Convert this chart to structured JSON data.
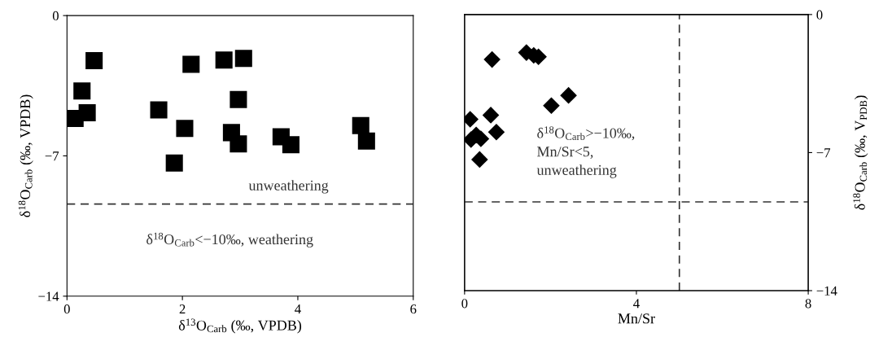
{
  "chart_data": [
    {
      "type": "scatter",
      "xlabel": "δ$^{13}$O$_{Carb}$ (‰, VPDB)",
      "ylabel": "δ$^{18}$O$_{Carb}$ (‰, VPDB)",
      "marker": "square",
      "xlim": [
        0,
        6
      ],
      "xticks": [
        0,
        2,
        4,
        6
      ],
      "ylim": [
        -14,
        0
      ],
      "yticks": [
        0,
        {
          "value": -7,
          "label": "−7"
        },
        {
          "value": -14,
          "label": "−14"
        }
      ],
      "x": [
        0.47,
        0.26,
        0.35,
        0.14,
        1.59,
        2.15,
        2.04,
        1.86,
        2.72,
        3.06,
        2.97,
        2.85,
        2.97,
        3.71,
        3.88,
        5.09,
        5.19
      ],
      "series": [
        {
          "color": "#000000",
          "values": [
            -2.25,
            -3.76,
            -4.85,
            -5.13,
            -4.71,
            -2.43,
            -5.63,
            -7.36,
            -2.22,
            -2.14,
            -4.19,
            -5.84,
            -6.4,
            -6.05,
            -6.44,
            -5.49,
            -6.26
          ]
        }
      ],
      "ref_lines": [
        {
          "axis": "y",
          "value": -9.4,
          "line_style": "dashed",
          "color": "#333333"
        }
      ],
      "annotations": [
        "unweathering",
        "δ$^{18}$O$_{Carb}$<−10‰, weathering"
      ],
      "grid": false
    },
    {
      "type": "scatter",
      "xlabel": "Mn/Sr",
      "y2label": "δ$^{18}$O$_{Carb}$ (‰, V$_{PDB}$)",
      "marker": "diamond",
      "xlim": [
        0,
        8
      ],
      "xticks": [
        0,
        4,
        8
      ],
      "y2lim": [
        -14,
        0
      ],
      "y2ticks": [
        0,
        {
          "value": -7,
          "label": "−7"
        },
        {
          "value": -14,
          "label": "−14"
        }
      ],
      "x": [
        0.64,
        1.44,
        1.61,
        1.72,
        2.42,
        2.02,
        0.61,
        0.13,
        0.15,
        0.27,
        0.38,
        0.74,
        0.35
      ],
      "series": [
        {
          "color": "#000000",
          "axis": "y2",
          "values": [
            -2.28,
            -1.93,
            -2.07,
            -2.14,
            -4.1,
            -4.62,
            -5.1,
            -5.31,
            -6.34,
            -6.11,
            -6.3,
            -5.96,
            -7.35
          ]
        }
      ],
      "ref_lines": [
        {
          "axis": "y2",
          "value": -9.5,
          "line_style": "dashed",
          "color": "#333333"
        },
        {
          "axis": "x",
          "value": 5,
          "line_style": "dashed",
          "color": "#333333"
        }
      ],
      "annotations": [
        "δ$^{18}$O$_{Carb}$>−10‰,\nMn/Sr<5,\nunweathering"
      ],
      "grid": false
    }
  ]
}
